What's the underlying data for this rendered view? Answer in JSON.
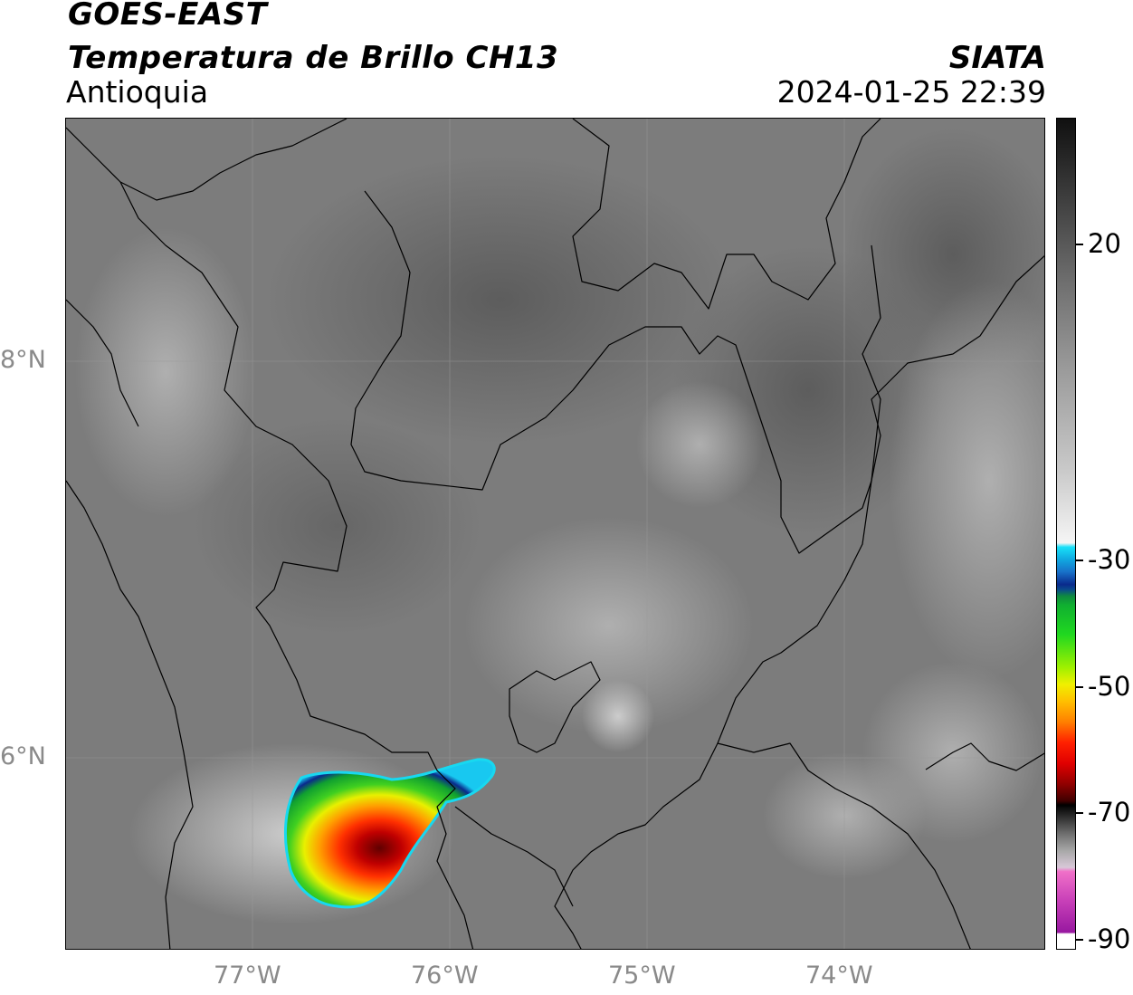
{
  "header": {
    "title_line1": "GOES-EAST",
    "title_line2": "Temperatura de Brillo CH13",
    "region": "Antioquia",
    "brand": "SIATA",
    "timestamp": "2024-01-25 22:39"
  },
  "map": {
    "lat_labels": [
      "8°N",
      "6°N"
    ],
    "lon_labels": [
      "77°W",
      "76°W",
      "75°W",
      "74°W"
    ]
  },
  "colorbar": {
    "labels": [
      "20",
      "-30",
      "-50",
      "-70",
      "-90"
    ],
    "colors": {
      "warm_gray_top": "#1a1a1a",
      "light_gray": "#f2f2f2",
      "cyan": "#18d8f0",
      "blue": "#0a2a8c",
      "green": "#10b830",
      "yellow": "#f0f000",
      "orange": "#ff8000",
      "red": "#e00000",
      "dark_red": "#600000",
      "black": "#000000",
      "gray_light": "#c8c8c8",
      "pink": "#f060c0",
      "purple": "#a020a0"
    }
  }
}
